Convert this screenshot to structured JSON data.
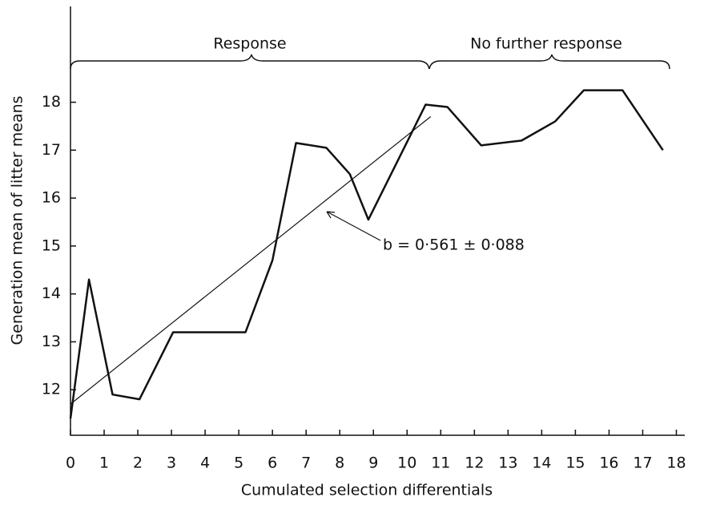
{
  "chart_data": {
    "type": "line",
    "xlabel": "Cumulated selection differentials",
    "ylabel": "Generation mean of litter means",
    "x": [
      0,
      0.55,
      1.25,
      2.05,
      3.05,
      4.1,
      5.2,
      6.0,
      6.7,
      7.6,
      8.3,
      8.85,
      9.95,
      10.55,
      11.2,
      12.2,
      13.4,
      14.4,
      15.25,
      16.4,
      17.6
    ],
    "series": [
      {
        "name": "Generation mean",
        "color": "#111111",
        "values": [
          11.4,
          14.3,
          11.9,
          11.8,
          13.2,
          13.2,
          13.2,
          14.7,
          17.15,
          17.05,
          16.5,
          15.55,
          17.1,
          17.95,
          17.9,
          17.1,
          17.2,
          17.6,
          18.25,
          18.25,
          17.0
        ]
      }
    ],
    "regression": {
      "x": [
        0,
        10.7
      ],
      "y": [
        11.7,
        17.7
      ]
    },
    "annotation": "b = 0·561 ± 0·088",
    "regions": [
      "Response",
      "No further response"
    ],
    "xlim": [
      0,
      18.25
    ],
    "ylim": [
      11.05,
      20.0
    ],
    "xticks": [
      0,
      1,
      2,
      3,
      4,
      5,
      6,
      7,
      8,
      9,
      10,
      11,
      12,
      13,
      14,
      15,
      16,
      17,
      18
    ],
    "yticks": [
      12,
      13,
      14,
      15,
      16,
      17,
      18
    ]
  }
}
